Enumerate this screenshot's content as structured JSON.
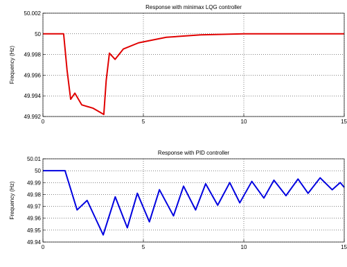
{
  "chart_data": [
    {
      "type": "line",
      "title": "Response with minimax LQG controller",
      "y_label": "Frequency (Hz)",
      "xlim": [
        0,
        15
      ],
      "xticks": [
        0,
        5,
        10,
        15
      ],
      "ylim": [
        49.992,
        50.002
      ],
      "yticks": [
        49.992,
        49.994,
        49.996,
        49.998,
        50,
        50.002
      ],
      "grid": true,
      "x": [
        0,
        1.03,
        1.2,
        1.38,
        1.59,
        1.93,
        2.5,
        3.03,
        3.15,
        3.31,
        3.59,
        4.0,
        4.76,
        6.14,
        7.86,
        10,
        15
      ],
      "series": [
        {
          "name": "minimax LQG",
          "color": "#e00000",
          "values": [
            50,
            50,
            49.9965,
            49.99367,
            49.99426,
            49.99313,
            49.9928,
            49.9922,
            49.9955,
            49.99813,
            49.99753,
            49.99853,
            49.99913,
            49.99967,
            49.9999,
            50,
            50
          ]
        }
      ]
    },
    {
      "type": "line",
      "title": "Response with PID controller",
      "y_label": "Frequency (Hz)",
      "xlim": [
        0,
        15
      ],
      "xticks": [
        0,
        5,
        10,
        15
      ],
      "ylim": [
        49.94,
        50.01
      ],
      "yticks": [
        49.94,
        49.95,
        49.96,
        49.97,
        49.98,
        49.99,
        50,
        50.01
      ],
      "grid": true,
      "x": [
        0,
        1.1,
        1.7,
        2.2,
        3.0,
        3.6,
        4.2,
        4.7,
        5.3,
        5.8,
        6.5,
        7.0,
        7.6,
        8.1,
        8.7,
        9.3,
        9.8,
        10.4,
        11.0,
        11.5,
        12.1,
        12.7,
        13.2,
        13.8,
        14.4,
        14.8,
        15
      ],
      "series": [
        {
          "name": "PID",
          "color": "#0000e0",
          "values": [
            50,
            50,
            49.967,
            49.975,
            49.946,
            49.978,
            49.952,
            49.981,
            49.957,
            49.984,
            49.962,
            49.987,
            49.967,
            49.989,
            49.971,
            49.99,
            49.973,
            49.991,
            49.977,
            49.992,
            49.979,
            49.993,
            49.981,
            49.994,
            49.984,
            49.99,
            49.986
          ]
        }
      ]
    }
  ]
}
